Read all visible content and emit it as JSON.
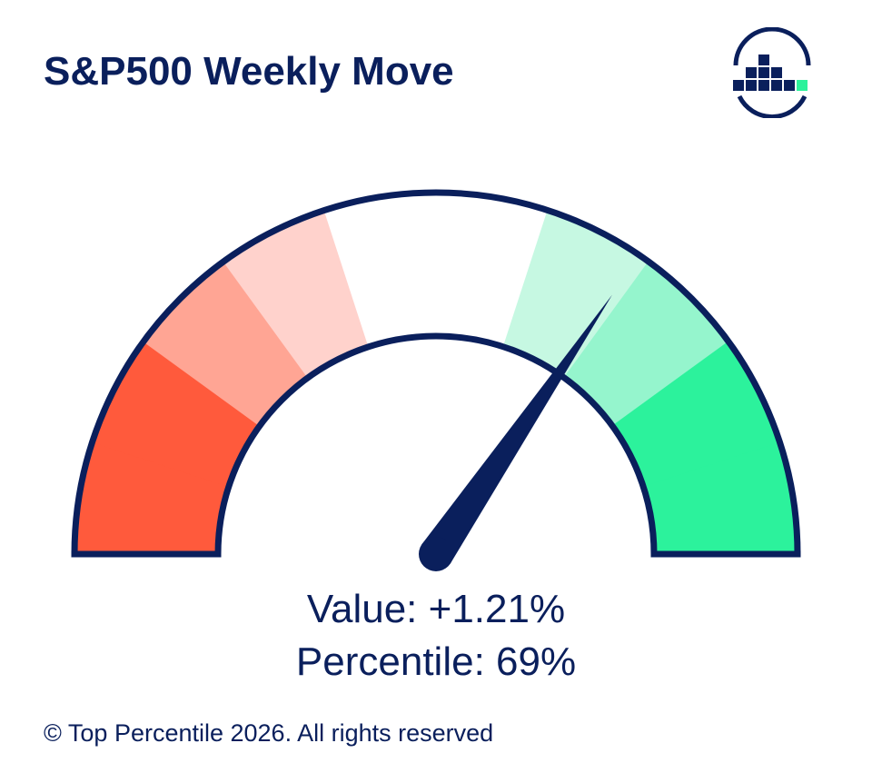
{
  "title": "S&P500 Weekly Move",
  "logo": {
    "icon": "bar-chart-circle-logo"
  },
  "chart_data": {
    "type": "gauge",
    "value_text": "+1.21%",
    "percentile": 69,
    "range": [
      0,
      100
    ],
    "bands": [
      {
        "from": 0,
        "to": 10,
        "color": "#ff5a3c"
      },
      {
        "from": 10,
        "to": 20,
        "color": "#ff5a3c"
      },
      {
        "from": 20,
        "to": 30,
        "color": "#ffa594"
      },
      {
        "from": 30,
        "to": 40,
        "color": "#ffd2cc"
      },
      {
        "from": 40,
        "to": 60,
        "color": "#ffffff"
      },
      {
        "from": 60,
        "to": 70,
        "color": "#c6f8e2"
      },
      {
        "from": 70,
        "to": 80,
        "color": "#95f5cd"
      },
      {
        "from": 80,
        "to": 90,
        "color": "#2cf29c"
      },
      {
        "from": 90,
        "to": 100,
        "color": "#2cf29c"
      }
    ],
    "outline_color": "#0a1f5c",
    "needle_color": "#0a1f5c"
  },
  "readout": {
    "value_label": "Value: +1.21%",
    "percentile_label": "Percentile: 69%"
  },
  "footer": "© Top Percentile 2026. All rights reserved"
}
